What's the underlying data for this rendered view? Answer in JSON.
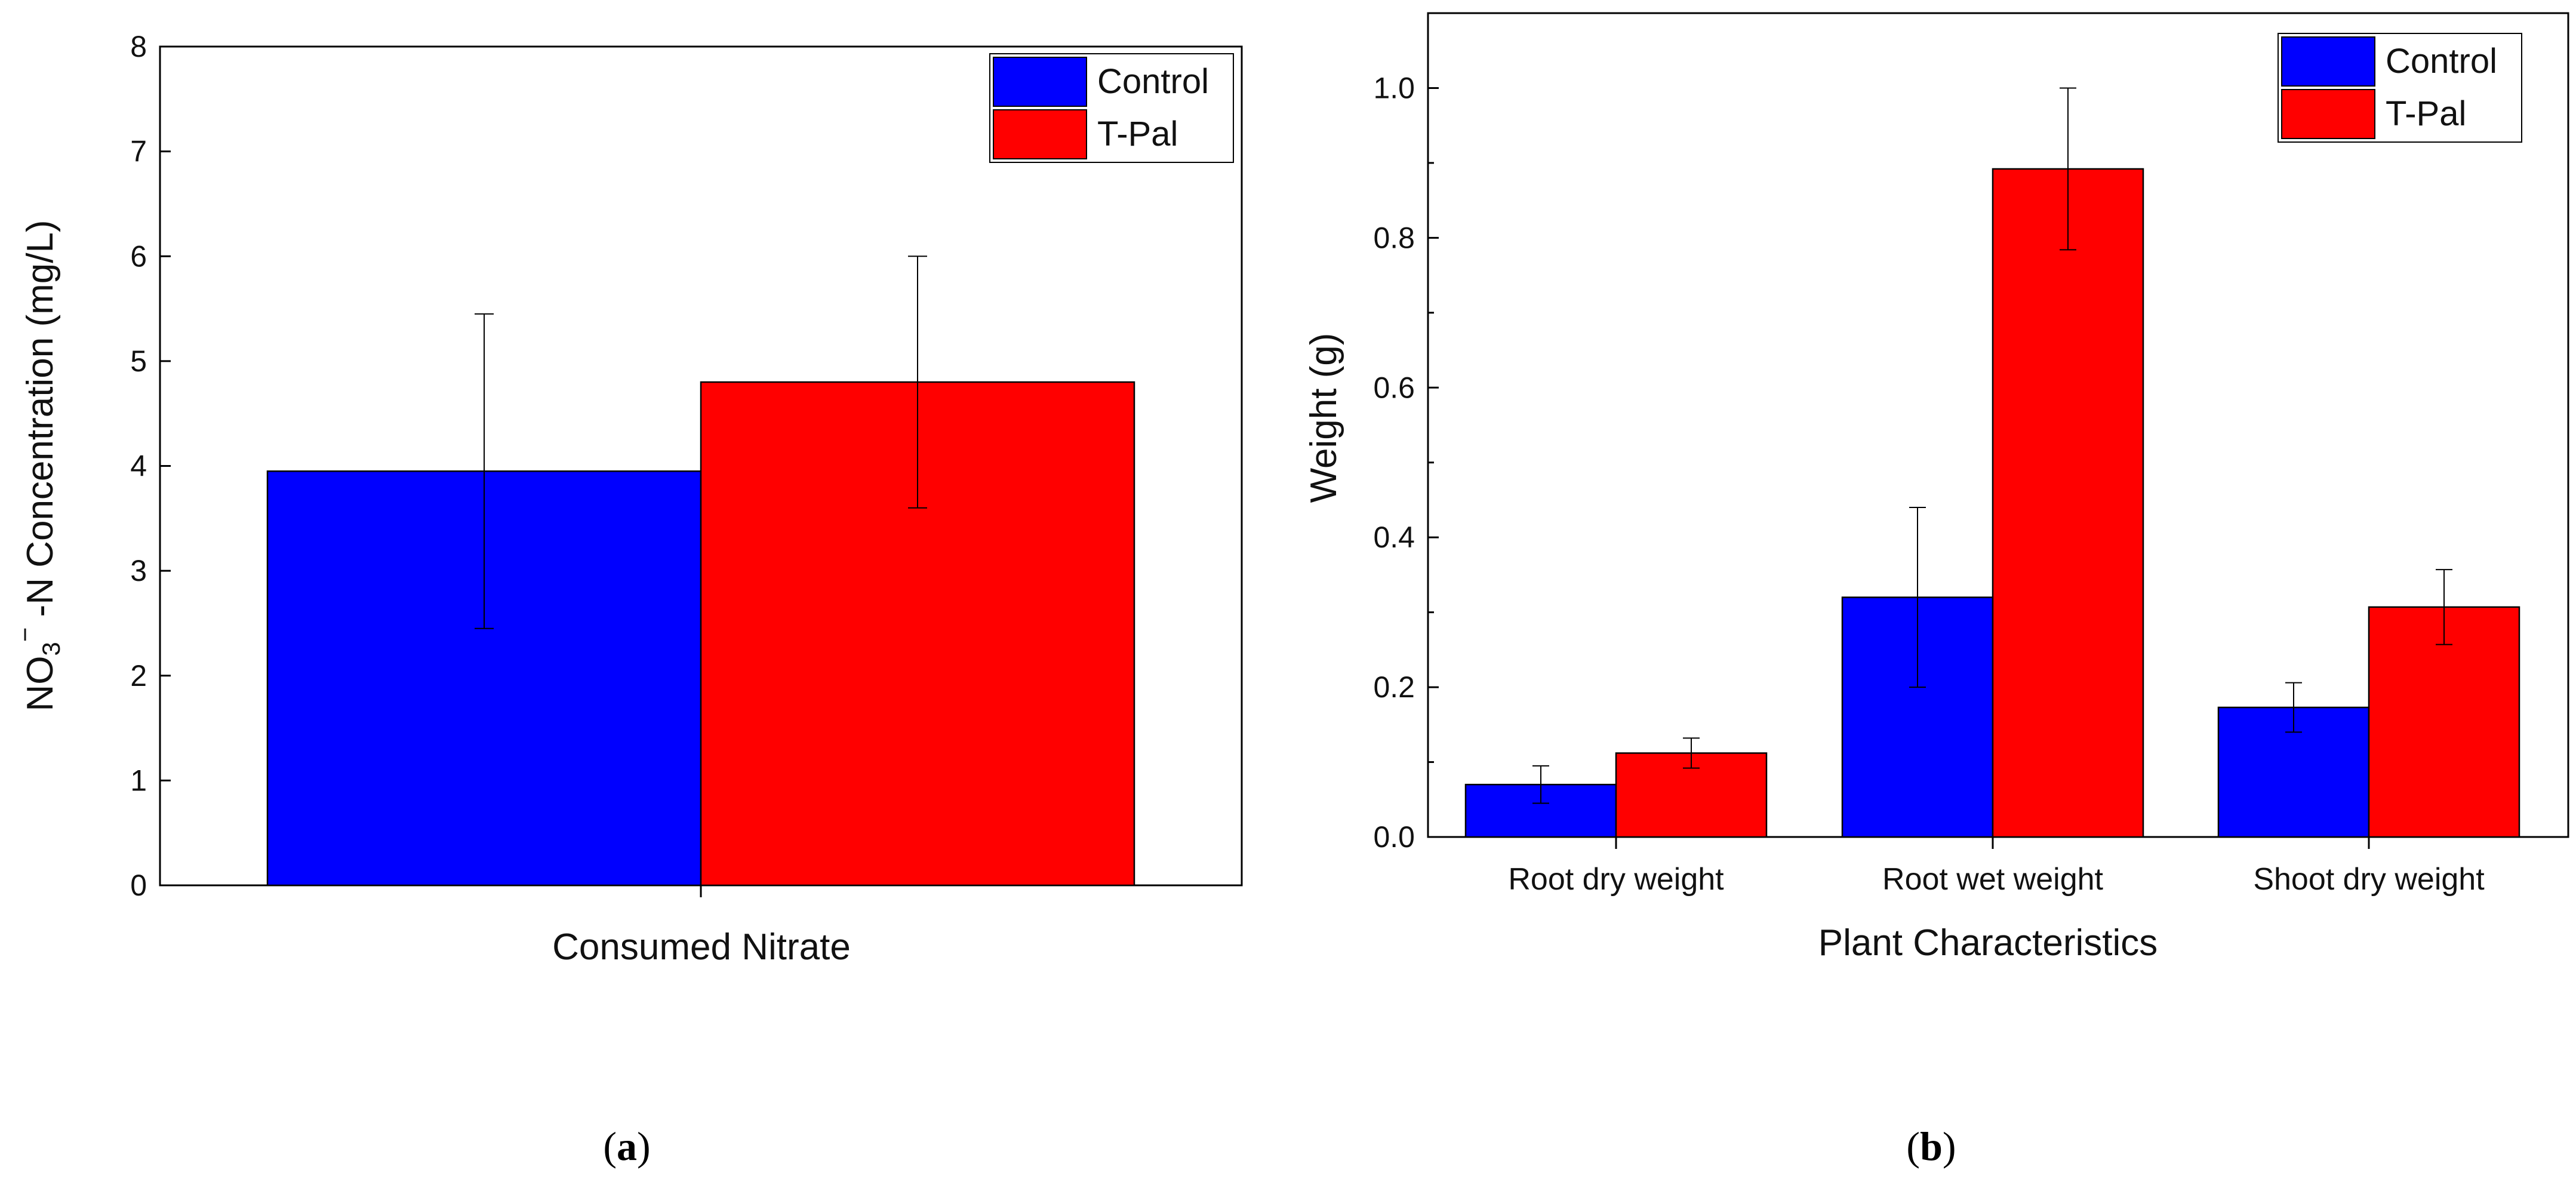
{
  "colors": {
    "control": "#0000ff",
    "tpal": "#ff0000"
  },
  "chart_data": [
    {
      "type": "bar",
      "categories": [
        "Consumed Nitrate"
      ],
      "series": [
        {
          "name": "Control",
          "values": [
            3.95
          ],
          "error": [
            1.5
          ]
        },
        {
          "name": "T-Pal",
          "values": [
            4.8
          ],
          "error": [
            1.2
          ]
        }
      ],
      "xlabel": "Consumed Nitrate",
      "ylabel_parts": [
        "NO",
        "3",
        "−",
        " -N Concentration (mg/L)"
      ],
      "ylim": [
        0,
        8
      ],
      "yticks": [
        "0",
        "1",
        "2",
        "3",
        "4",
        "5",
        "6",
        "7",
        "8"
      ],
      "legend": [
        "Control",
        "T-Pal"
      ],
      "legend_position": "top-right",
      "caption": [
        "(",
        "a",
        ")"
      ]
    },
    {
      "type": "bar",
      "categories": [
        "Root dry weight",
        "Root wet weight",
        "Shoot dry weight"
      ],
      "series": [
        {
          "name": "Control",
          "values": [
            0.07,
            0.32,
            0.173
          ],
          "error": [
            0.025,
            0.12,
            0.033
          ]
        },
        {
          "name": "T-Pal",
          "values": [
            0.112,
            0.892,
            0.307
          ],
          "error": [
            0.02,
            0.108,
            0.05
          ]
        }
      ],
      "xlabel": "Plant Characteristics",
      "ylabel": "Weight (g)",
      "ylim": [
        0,
        1.1
      ],
      "yticks": [
        "0.0",
        "0.2",
        "0.4",
        "0.6",
        "0.8",
        "1.0"
      ],
      "legend": [
        "Control",
        "T-Pal"
      ],
      "legend_position": "top-right",
      "caption": [
        "(",
        "b",
        ")"
      ]
    }
  ]
}
